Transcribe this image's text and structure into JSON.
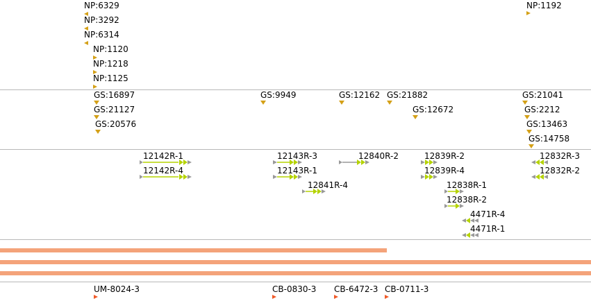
{
  "colors": {
    "np_marker": "#d4a017",
    "gs_marker": "#d4a017",
    "feature_green": "#b5d300",
    "feature_gray": "#999999",
    "bar": "#f4a37a",
    "cb_marker": "#f05a28",
    "separator": "#b8b8b8"
  },
  "np_track": [
    {
      "id": "np-6329",
      "label": "NP:6329",
      "dir": "left"
    },
    {
      "id": "np-3292",
      "label": "NP:3292",
      "dir": "left"
    },
    {
      "id": "np-6314",
      "label": "NP:6314",
      "dir": "left"
    },
    {
      "id": "np-1120",
      "label": "NP:1120",
      "dir": "right"
    },
    {
      "id": "np-1218",
      "label": "NP:1218",
      "dir": "right"
    },
    {
      "id": "np-1125",
      "label": "NP:1125",
      "dir": "right"
    },
    {
      "id": "np-1192",
      "label": "NP:1192",
      "dir": "right"
    }
  ],
  "gs_track": [
    {
      "id": "gs-16897",
      "label": "GS:16897"
    },
    {
      "id": "gs-21127",
      "label": "GS:21127"
    },
    {
      "id": "gs-20576",
      "label": "GS:20576"
    },
    {
      "id": "gs-9949",
      "label": "GS:9949"
    },
    {
      "id": "gs-12162",
      "label": "GS:12162"
    },
    {
      "id": "gs-21882",
      "label": "GS:21882"
    },
    {
      "id": "gs-12672",
      "label": "GS:12672"
    },
    {
      "id": "gs-21041",
      "label": "GS:21041"
    },
    {
      "id": "gs-2212",
      "label": "GS:2212"
    },
    {
      "id": "gs-13463",
      "label": "GS:13463"
    },
    {
      "id": "gs-14758",
      "label": "GS:14758"
    }
  ],
  "gene_track": [
    {
      "id": "12142r-1",
      "label": "12142R-1",
      "strand": "forward"
    },
    {
      "id": "12142r-4",
      "label": "12142R-4",
      "strand": "forward"
    },
    {
      "id": "12143r-3",
      "label": "12143R-3",
      "strand": "forward"
    },
    {
      "id": "12143r-1",
      "label": "12143R-1",
      "strand": "forward"
    },
    {
      "id": "12841r-4",
      "label": "12841R-4",
      "strand": "forward"
    },
    {
      "id": "12840r-2",
      "label": "12840R-2",
      "strand": "forward"
    },
    {
      "id": "12839r-2",
      "label": "12839R-2",
      "strand": "forward"
    },
    {
      "id": "12839r-4",
      "label": "12839R-4",
      "strand": "forward"
    },
    {
      "id": "12838r-1",
      "label": "12838R-1",
      "strand": "forward"
    },
    {
      "id": "12838r-2",
      "label": "12838R-2",
      "strand": "forward"
    },
    {
      "id": "4471r-4",
      "label": "4471R-4",
      "strand": "reverse"
    },
    {
      "id": "4471r-1",
      "label": "4471R-1",
      "strand": "reverse"
    },
    {
      "id": "12832r-3",
      "label": "12832R-3",
      "strand": "reverse"
    },
    {
      "id": "12832r-2",
      "label": "12832R-2",
      "strand": "reverse"
    }
  ],
  "bar_track": [
    {
      "id": "bar-1"
    },
    {
      "id": "bar-2"
    },
    {
      "id": "bar-3"
    }
  ],
  "marker_track": [
    {
      "id": "um-8024-3",
      "label": "UM-8024-3"
    },
    {
      "id": "cb-0830-3",
      "label": "CB-0830-3"
    },
    {
      "id": "cb-6472-3",
      "label": "CB-6472-3"
    },
    {
      "id": "cb-0711-3",
      "label": "CB-0711-3"
    }
  ]
}
